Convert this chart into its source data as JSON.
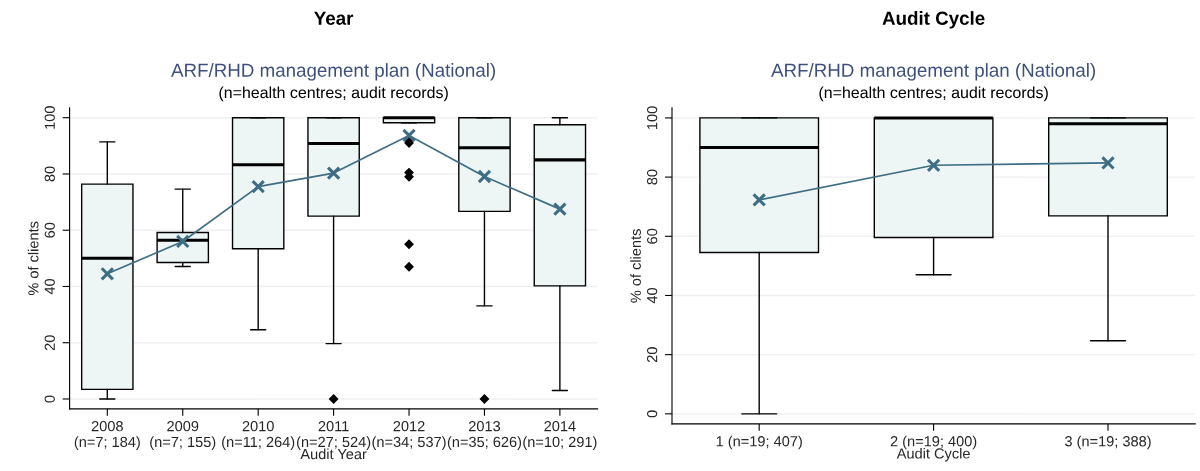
{
  "chart_data": [
    {
      "type": "box",
      "annotations": [
        "Year"
      ],
      "title": "ARF/RHD management plan (National)",
      "subtitle": "(n=health centres; audit records)",
      "xlabel": "Audit Year",
      "ylabel": "% of clients",
      "categories": [
        "2008\n(n=7; 184)",
        "2009\n(n=7; 155)",
        "2010\n(n=11; 264)",
        "2011\n(n=27; 524)",
        "2012\n(n=34; 537)",
        "2013\n(n=35; 626)",
        "2014\n(n=10; 291)"
      ],
      "series": [
        {
          "type": "box",
          "color": "#edf5f5",
          "boxes": [
            {
              "low": 0,
              "q1": 3.4,
              "median": 50,
              "q3": 76.4,
              "high": 91.4
            },
            {
              "low": 47.1,
              "q1": 48.5,
              "median": 56.4,
              "q3": 59.2,
              "high": 74.6
            },
            {
              "low": 24.6,
              "q1": 53.4,
              "median": 83.3,
              "q3": 100,
              "high": 100
            },
            {
              "low": 19.7,
              "q1": 65,
              "median": 90.8,
              "q3": 100,
              "high": 100,
              "outliers": [
                0
              ]
            },
            {
              "low": 98.2,
              "q1": 98.2,
              "median": 100,
              "q3": 100,
              "high": 100,
              "outliers": [
                92,
                91,
                80.5,
                79,
                55,
                47
              ]
            },
            {
              "low": 33.1,
              "q1": 66.7,
              "median": 89.3,
              "q3": 100,
              "high": 100,
              "outliers": [
                0
              ]
            },
            {
              "low": 3,
              "q1": 40.2,
              "median": 85,
              "q3": 97.5,
              "high": 100
            }
          ]
        },
        {
          "type": "line",
          "color": "#3f6d84",
          "marker": "cross",
          "values": [
            44.5,
            56,
            75.5,
            80.3,
            93.7,
            79.1,
            67.5
          ]
        }
      ],
      "ylim": [
        -3.5,
        103.5
      ],
      "yticks": [
        0,
        20,
        40,
        60,
        80,
        100
      ],
      "grid": "y"
    },
    {
      "type": "box",
      "annotations": [
        "Audit Cycle"
      ],
      "title": "ARF/RHD management plan (National)",
      "subtitle": "(n=health centres; audit records)",
      "xlabel": "Audit Cycle",
      "ylabel": "% of clients",
      "categories": [
        "1 (n=19; 407)",
        "2 (n=19; 400)",
        "3 (n=19; 388)"
      ],
      "series": [
        {
          "type": "box",
          "color": "#edf5f5",
          "boxes": [
            {
              "low": 0,
              "q1": 54.5,
              "median": 90,
              "q3": 100,
              "high": 100
            },
            {
              "low": 47,
              "q1": 59.6,
              "median": 100,
              "q3": 100,
              "high": 100
            },
            {
              "low": 24.7,
              "q1": 66.9,
              "median": 98,
              "q3": 100,
              "high": 100
            }
          ]
        },
        {
          "type": "line",
          "color": "#3f6d84",
          "marker": "cross",
          "values": [
            72.3,
            84,
            84.8
          ]
        }
      ],
      "ylim": [
        -3.4,
        103.4
      ],
      "yticks": [
        0,
        20,
        40,
        60,
        80,
        100
      ],
      "grid": "y"
    }
  ]
}
